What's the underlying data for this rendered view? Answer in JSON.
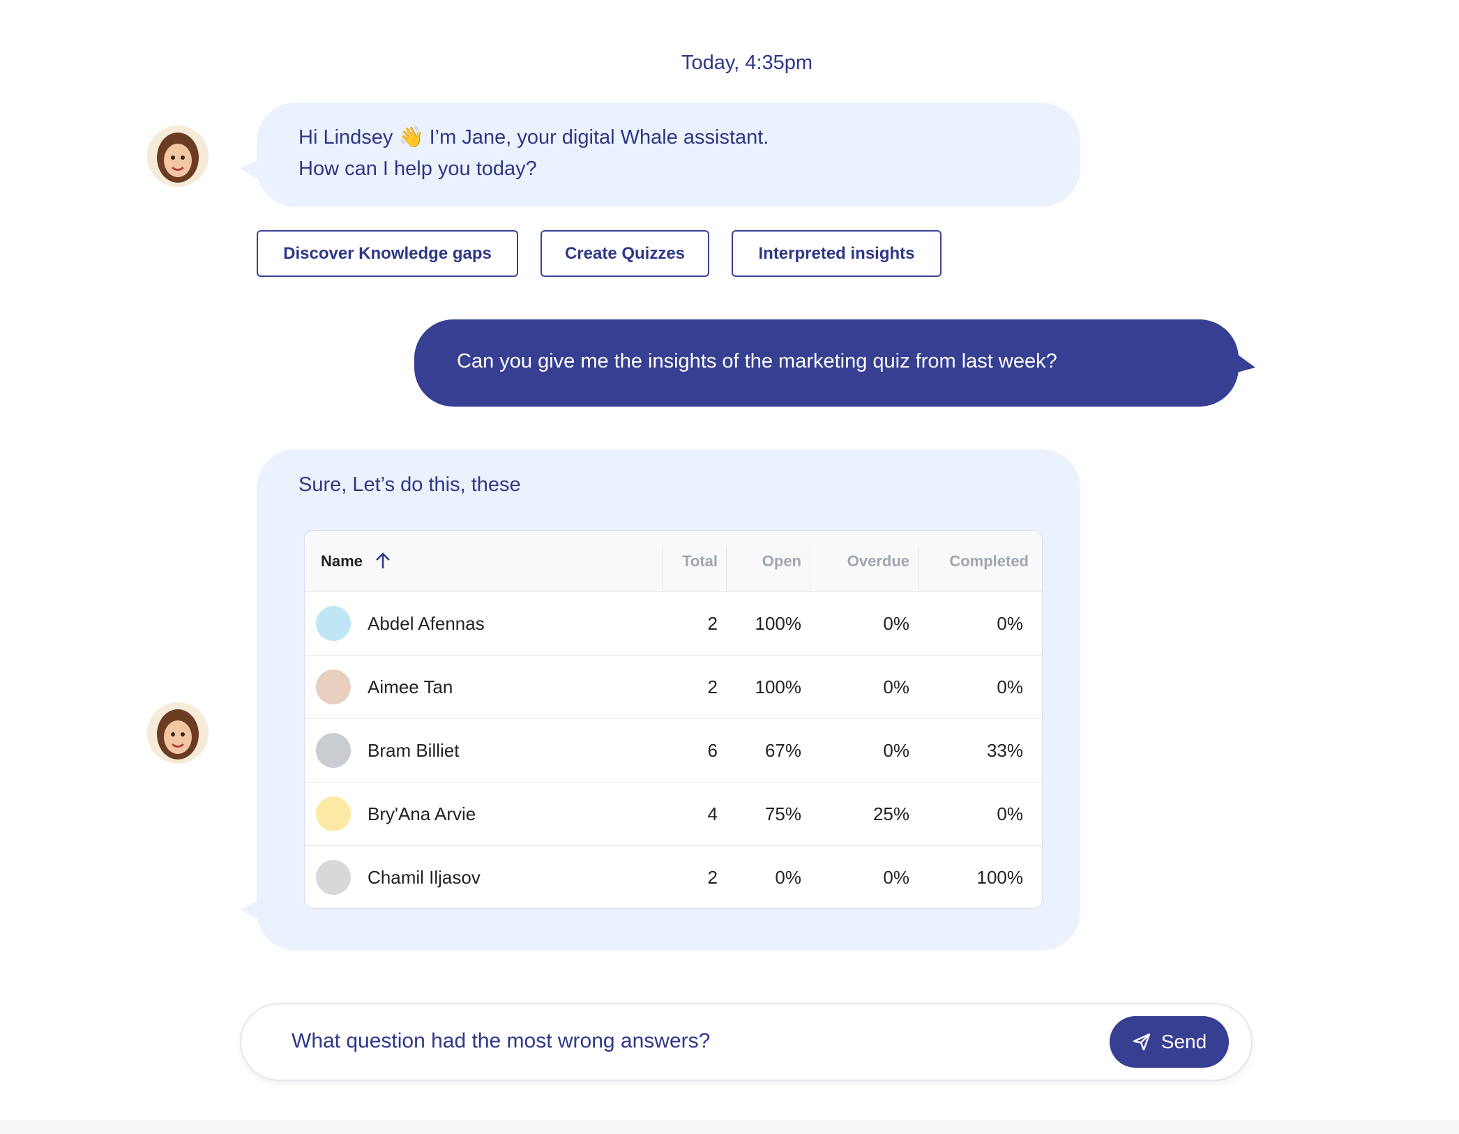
{
  "timestamp": "Today, 4:35pm",
  "greeting": {
    "lines": [
      "Hi Lindsey 👋 I’m Jane, your digital Whale assistant.",
      "How can I help you today?"
    ]
  },
  "suggestions": [
    "Discover Knowledge gaps",
    "Create Quizzes",
    "Interpreted insights"
  ],
  "user_message": "Can you give me the insights of the marketing quiz from last week?",
  "reply": {
    "text": "Sure, Let’s do this, these",
    "table": {
      "header": [
        "Name",
        "Total",
        "Open",
        "Overdue",
        "Completed"
      ],
      "rows": [
        [
          "Abdel Afennas",
          "2",
          "100%",
          "0%",
          "0%"
        ],
        [
          "Aimee Tan",
          "2",
          "100%",
          "0%",
          "0%"
        ],
        [
          "Bram Billiet",
          "6",
          "67%",
          "0%",
          "33%"
        ],
        [
          "Bry'Ana Arvie",
          "4",
          "75%",
          "25%",
          "0%"
        ],
        [
          "Chamil Iljasov",
          "2",
          "0%",
          "0%",
          "100%"
        ]
      ]
    }
  },
  "input": {
    "text": "What question had the most wrong answers?",
    "button": "Send"
  }
}
